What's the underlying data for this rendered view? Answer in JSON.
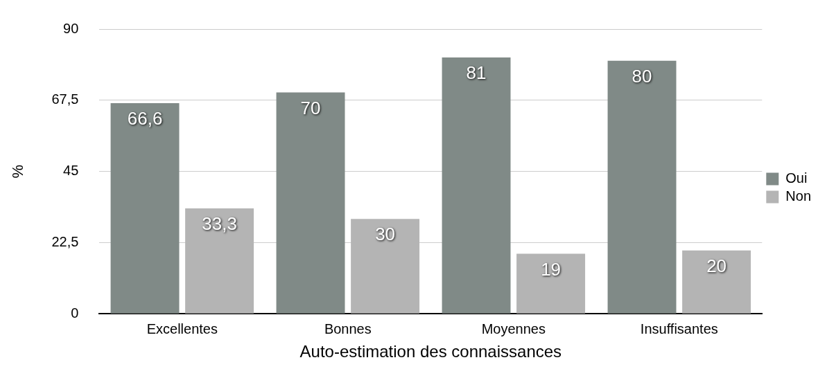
{
  "chart_data": {
    "type": "bar",
    "xlabel": "Auto-estimation des connaissances",
    "ylabel": "%",
    "categories": [
      "Excellentes",
      "Bonnes",
      "Moyennes",
      "Insuffisantes"
    ],
    "series": [
      {
        "name": "Oui",
        "color": "#808a87",
        "values": [
          66.6,
          70,
          81,
          80
        ],
        "value_labels": [
          "66,6",
          "70",
          "81",
          "80"
        ]
      },
      {
        "name": "Non",
        "color": "#b4b4b4",
        "values": [
          33.3,
          30,
          19,
          20
        ],
        "value_labels": [
          "33,3",
          "30",
          "19",
          "20"
        ]
      }
    ],
    "ylim": [
      0,
      90
    ],
    "yticks": [
      0,
      {
        "value": 22.5,
        "label": "22,5"
      },
      45,
      {
        "value": 67.5,
        "label": "67,5"
      },
      90
    ],
    "grid": "y",
    "legend": "right"
  }
}
